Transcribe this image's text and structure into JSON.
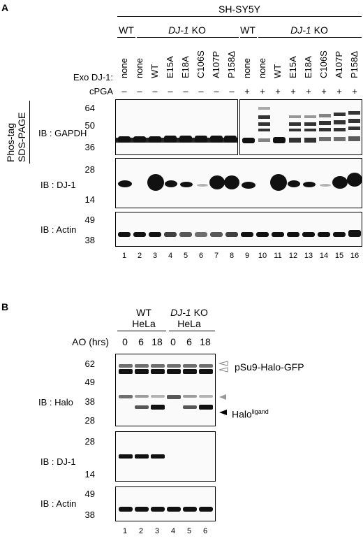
{
  "panelA": {
    "letter": "A",
    "cell_line": "SH-SY5Y",
    "wt": "WT",
    "ko_gene": "DJ-1",
    "ko_suffix": " KO",
    "exo_label": "Exo DJ-1:",
    "cpga_label": "cPGA",
    "exo_values": [
      "none",
      "none",
      "WT",
      "E15A",
      "E18A",
      "C106S",
      "A107P",
      "P158Δ",
      "none",
      "none",
      "WT",
      "E15A",
      "E18A",
      "C106S",
      "A107P",
      "P158Δ"
    ],
    "cpga_values": [
      "–",
      "–",
      "–",
      "–",
      "–",
      "–",
      "–",
      "–",
      "+",
      "+",
      "+",
      "+",
      "+",
      "+",
      "+",
      "+"
    ],
    "phos_line1": "Phos-tag",
    "phos_line2": "SDS-PAGE",
    "ib_gapdh": "IB : GAPDH",
    "ib_dj1": "IB : DJ-1",
    "ib_actin": "IB : Actin",
    "gapdh_markers": [
      "64",
      "50",
      "36"
    ],
    "dj1_markers": [
      "28",
      "14"
    ],
    "actin_markers": [
      "49",
      "38"
    ],
    "lanes": [
      "1",
      "2",
      "3",
      "4",
      "5",
      "6",
      "7",
      "8",
      "9",
      "10",
      "11",
      "12",
      "13",
      "14",
      "15",
      "16"
    ]
  },
  "panelB": {
    "letter": "B",
    "wt": "WT",
    "ko_gene": "DJ-1",
    "ko_suffix": " KO",
    "hela": "HeLa",
    "ao_label": "AO (hrs)",
    "ao_values": [
      "0",
      "6",
      "18",
      "0",
      "6",
      "18"
    ],
    "ib_halo": "IB : Halo",
    "ib_dj1": "IB : DJ-1",
    "ib_actin": "IB : Actin",
    "halo_markers": [
      "62",
      "49",
      "38",
      "28"
    ],
    "dj1_markers": [
      "28",
      "14"
    ],
    "actin_markers": [
      "49",
      "38"
    ],
    "psu9_label": "pSu9-Halo-GFP",
    "halo_ligand_label": "Halo",
    "halo_ligand_sup": "ligand",
    "lanes": [
      "1",
      "2",
      "3",
      "4",
      "5",
      "6"
    ]
  }
}
